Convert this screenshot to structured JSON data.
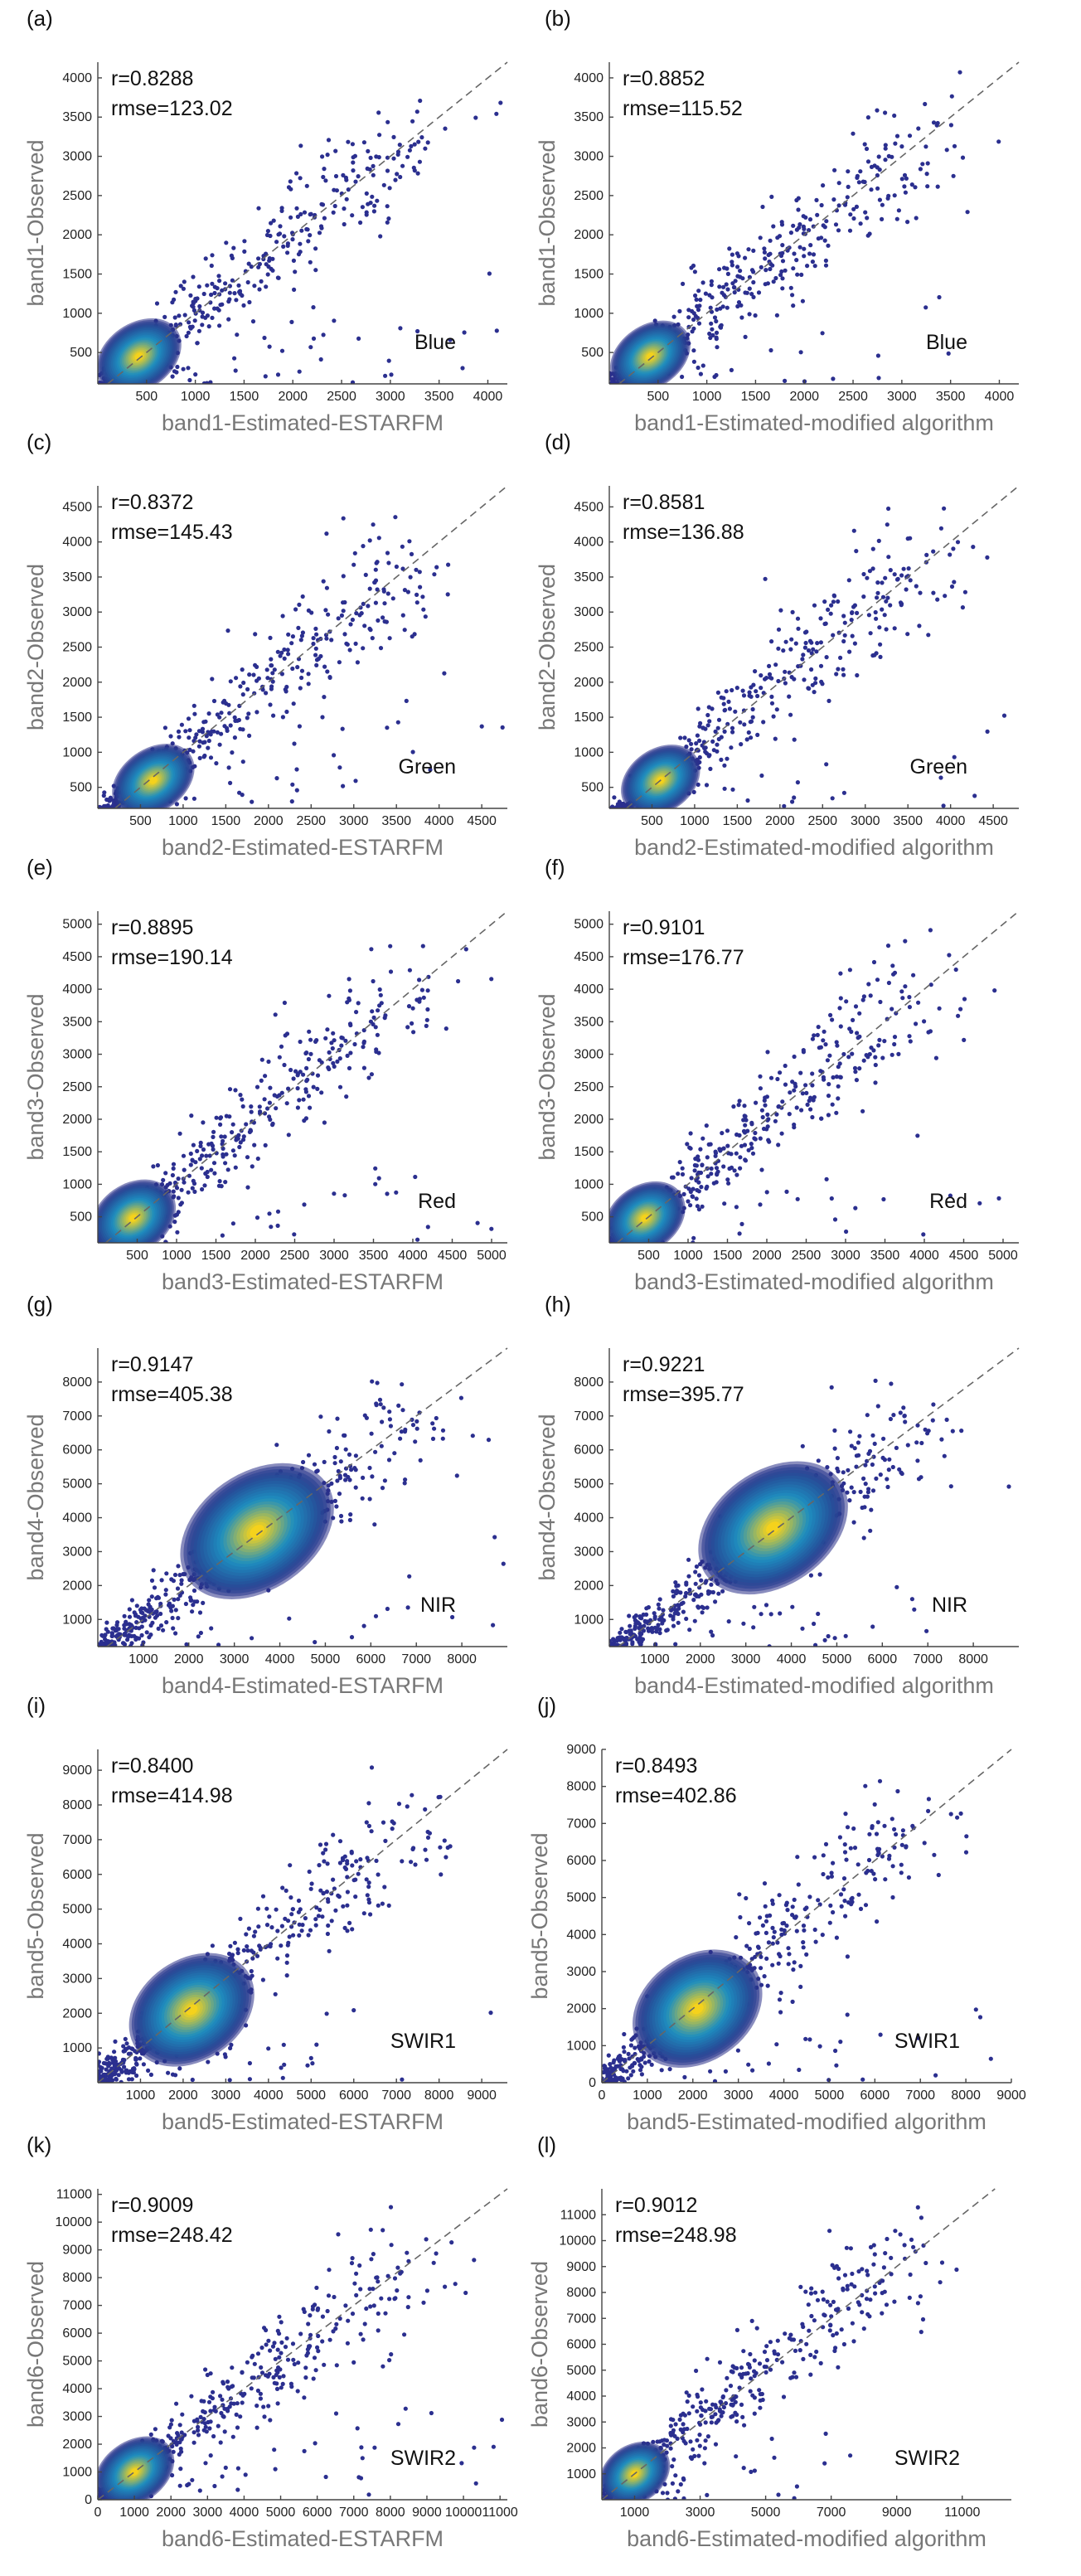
{
  "chart_data": [
    {
      "id": "a",
      "panel_label": "(a)",
      "type": "scatter",
      "band": "Blue",
      "r_text": "r=0.8288",
      "rmse_text": "rmse=123.02",
      "xlabel": "band1-Estimated-ESTARFM",
      "ylabel": "band1-Observed",
      "xlim": [
        0,
        4200
      ],
      "ylim": [
        100,
        4200
      ],
      "xticks": [
        500,
        1000,
        1500,
        2000,
        2500,
        3000,
        3500,
        4000
      ],
      "yticks": [
        500,
        1000,
        1500,
        2000,
        2500,
        3000,
        3500,
        4000
      ],
      "density_center": [
        420,
        450
      ],
      "density_spread": [
        180,
        160
      ]
    },
    {
      "id": "b",
      "panel_label": "(b)",
      "type": "scatter",
      "band": "Blue",
      "r_text": "r=0.8852",
      "rmse_text": "rmse=115.52",
      "xlabel": "band1-Estimated-modified algorithm",
      "ylabel": "band1-Observed",
      "xlim": [
        0,
        4200
      ],
      "ylim": [
        100,
        4200
      ],
      "xticks": [
        500,
        1000,
        1500,
        2000,
        2500,
        3000,
        3500,
        4000
      ],
      "yticks": [
        500,
        1000,
        1500,
        2000,
        2500,
        3000,
        3500,
        4000
      ],
      "density_center": [
        420,
        450
      ],
      "density_spread": [
        170,
        150
      ]
    },
    {
      "id": "c",
      "panel_label": "(c)",
      "type": "scatter",
      "band": "Green",
      "r_text": "r=0.8372",
      "rmse_text": "rmse=145.43",
      "xlabel": "band2-Estimated-ESTARFM",
      "ylabel": "band2-Observed",
      "xlim": [
        0,
        4800
      ],
      "ylim": [
        200,
        4800
      ],
      "xticks": [
        500,
        1000,
        1500,
        2000,
        2500,
        3000,
        3500,
        4000,
        4500
      ],
      "yticks": [
        500,
        1000,
        1500,
        2000,
        2500,
        3000,
        3500,
        4000,
        4500
      ],
      "density_center": [
        650,
        600
      ],
      "density_spread": [
        200,
        170
      ]
    },
    {
      "id": "d",
      "panel_label": "(d)",
      "type": "scatter",
      "band": "Green",
      "r_text": "r=0.8581",
      "rmse_text": "rmse=136.88",
      "xlabel": "band2-Estimated-modified algorithm",
      "ylabel": "band2-Observed",
      "xlim": [
        0,
        4800
      ],
      "ylim": [
        200,
        4800
      ],
      "xticks": [
        500,
        1000,
        1500,
        2000,
        2500,
        3000,
        3500,
        4000,
        4500
      ],
      "yticks": [
        500,
        1000,
        1500,
        2000,
        2500,
        3000,
        3500,
        4000,
        4500
      ],
      "density_center": [
        600,
        600
      ],
      "density_spread": [
        190,
        170
      ]
    },
    {
      "id": "e",
      "panel_label": "(e)",
      "type": "scatter",
      "band": "Red",
      "r_text": "r=0.8895",
      "rmse_text": "rmse=190.14",
      "xlabel": "band3-Estimated-ESTARFM",
      "ylabel": "band3-Observed",
      "xlim": [
        0,
        5200
      ],
      "ylim": [
        100,
        5200
      ],
      "xticks": [
        500,
        1000,
        1500,
        2000,
        2500,
        3000,
        3500,
        4000,
        4500,
        5000
      ],
      "yticks": [
        500,
        1000,
        1500,
        2000,
        2500,
        3000,
        3500,
        4000,
        4500,
        5000
      ],
      "density_center": [
        450,
        480
      ],
      "density_spread": [
        220,
        200
      ]
    },
    {
      "id": "f",
      "panel_label": "(f)",
      "type": "scatter",
      "band": "Red",
      "r_text": "r=0.9101",
      "rmse_text": "rmse=176.77",
      "xlabel": "band3-Estimated-modified algorithm",
      "ylabel": "band3-Observed",
      "xlim": [
        0,
        5200
      ],
      "ylim": [
        100,
        5200
      ],
      "xticks": [
        500,
        1000,
        1500,
        2000,
        2500,
        3000,
        3500,
        4000,
        4500,
        5000
      ],
      "yticks": [
        500,
        1000,
        1500,
        2000,
        2500,
        3000,
        3500,
        4000,
        4500,
        5000
      ],
      "density_center": [
        450,
        480
      ],
      "density_spread": [
        210,
        190
      ]
    },
    {
      "id": "g",
      "panel_label": "(g)",
      "type": "scatter",
      "band": "NIR",
      "r_text": "r=0.9147",
      "rmse_text": "rmse=405.38",
      "xlabel": "band4-Estimated-ESTARFM",
      "ylabel": "band4-Observed",
      "xlim": [
        0,
        9000
      ],
      "ylim": [
        200,
        9000
      ],
      "xticks": [
        1000,
        2000,
        3000,
        4000,
        5000,
        6000,
        7000,
        8000
      ],
      "yticks": [
        1000,
        2000,
        3000,
        4000,
        5000,
        6000,
        7000,
        8000
      ],
      "density_center": [
        3500,
        3600
      ],
      "density_spread": [
        700,
        650
      ]
    },
    {
      "id": "h",
      "panel_label": "(h)",
      "type": "scatter",
      "band": "NIR",
      "r_text": "r=0.9221",
      "rmse_text": "rmse=395.77",
      "xlabel": "band4-Estimated-modified algorithm",
      "ylabel": "band4-Observed",
      "xlim": [
        0,
        9000
      ],
      "ylim": [
        200,
        9000
      ],
      "xticks": [
        1000,
        2000,
        3000,
        4000,
        5000,
        6000,
        7000,
        8000
      ],
      "yticks": [
        1000,
        2000,
        3000,
        4000,
        5000,
        6000,
        7000,
        8000
      ],
      "density_center": [
        3600,
        3700
      ],
      "density_spread": [
        680,
        640
      ]
    },
    {
      "id": "i",
      "panel_label": "(i)",
      "type": "scatter",
      "band": "SWIR1",
      "r_text": "r=0.8400",
      "rmse_text": "rmse=414.98",
      "xlabel": "band5-Estimated-ESTARFM",
      "ylabel": "band5-Observed",
      "xlim": [
        0,
        9600
      ],
      "ylim": [
        0,
        9600
      ],
      "xticks": [
        1000,
        2000,
        3000,
        4000,
        5000,
        6000,
        7000,
        8000,
        9000
      ],
      "yticks": [
        1000,
        2000,
        3000,
        4000,
        5000,
        6000,
        7000,
        8000,
        9000
      ],
      "density_center": [
        2200,
        2100
      ],
      "density_spread": [
        600,
        550
      ]
    },
    {
      "id": "j",
      "panel_label": "(j)",
      "type": "scatter",
      "band": "SWIR1",
      "r_text": "r=0.8493",
      "rmse_text": "rmse=402.86",
      "xlabel": "band5-Estimated-modified algorithm",
      "ylabel": "band5-Observed",
      "xlim": [
        0,
        9000
      ],
      "ylim": [
        0,
        9000
      ],
      "xticks": [
        0,
        1000,
        2000,
        3000,
        4000,
        5000,
        6000,
        7000,
        8000,
        9000
      ],
      "yticks": [
        0,
        1000,
        2000,
        3000,
        4000,
        5000,
        6000,
        7000,
        8000,
        9000
      ],
      "density_center": [
        2100,
        2000
      ],
      "density_spread": [
        580,
        540
      ]
    },
    {
      "id": "k",
      "panel_label": "(k)",
      "type": "scatter",
      "band": "SWIR2",
      "r_text": "r=0.9009",
      "rmse_text": "rmse=248.42",
      "xlabel": "band6-Estimated-ESTARFM",
      "ylabel": "band6-Observed",
      "xlim": [
        0,
        11200
      ],
      "ylim": [
        0,
        11200
      ],
      "xticks": [
        0,
        1000,
        2000,
        3000,
        4000,
        5000,
        6000,
        7000,
        8000,
        9000,
        10000,
        11000
      ],
      "yticks": [
        0,
        1000,
        2000,
        3000,
        4000,
        5000,
        6000,
        7000,
        8000,
        9000,
        10000,
        11000
      ],
      "density_center": [
        1000,
        1000
      ],
      "density_spread": [
        450,
        420
      ]
    },
    {
      "id": "l",
      "panel_label": "(l)",
      "type": "scatter",
      "band": "SWIR2",
      "r_text": "r=0.9012",
      "rmse_text": "rmse=248.98",
      "xlabel": "band6-Estimated-modified algorithm",
      "ylabel": "band6-Observed",
      "xlim": [
        0,
        12500
      ],
      "ylim": [
        0,
        12000
      ],
      "xticks": [
        1000,
        3000,
        5000,
        7000,
        9000,
        11000
      ],
      "yticks": [
        1000,
        2000,
        3000,
        4000,
        5000,
        6000,
        7000,
        8000,
        9000,
        10000,
        11000
      ],
      "density_center": [
        1000,
        1000
      ],
      "density_spread": [
        440,
        420
      ]
    }
  ],
  "colors": {
    "point": "#2b2f8f",
    "density_low": "#2a2f88",
    "density_mid": "#1f8fc0",
    "density_high": "#f5d21c",
    "diagonal": "#666666",
    "axis_title": "#777777"
  }
}
